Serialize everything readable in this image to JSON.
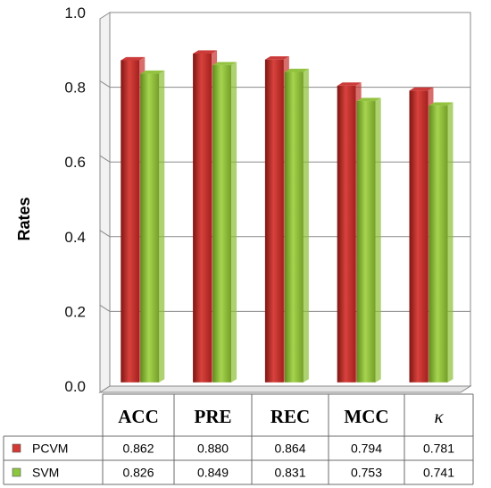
{
  "chart_data": {
    "type": "bar",
    "categories": [
      "ACC",
      "PRE",
      "REC",
      "MCC",
      "κ"
    ],
    "series": [
      {
        "name": "PCVM",
        "values": [
          0.862,
          0.88,
          0.864,
          0.794,
          0.781
        ],
        "color": "#c8302e",
        "marker": "#d23a36"
      },
      {
        "name": "SVM",
        "values": [
          0.826,
          0.849,
          0.831,
          0.753,
          0.741
        ],
        "color": "#8cbf35",
        "marker": "#8dc63f"
      }
    ],
    "ylabel": "Rates",
    "xlabel": "",
    "ylim": [
      0,
      1.0
    ],
    "yticks": [
      "0.0",
      "0.2",
      "0.4",
      "0.6",
      "0.8",
      "1.0"
    ],
    "grid": true,
    "data_table": true,
    "table_rows": [
      {
        "series": "PCVM",
        "cells": [
          "0.862",
          "0.880",
          "0.864",
          "0.794",
          "0.781"
        ]
      },
      {
        "series": "SVM",
        "cells": [
          "0.826",
          "0.849",
          "0.831",
          "0.753",
          "0.741"
        ]
      }
    ],
    "style": "3d-columns"
  }
}
